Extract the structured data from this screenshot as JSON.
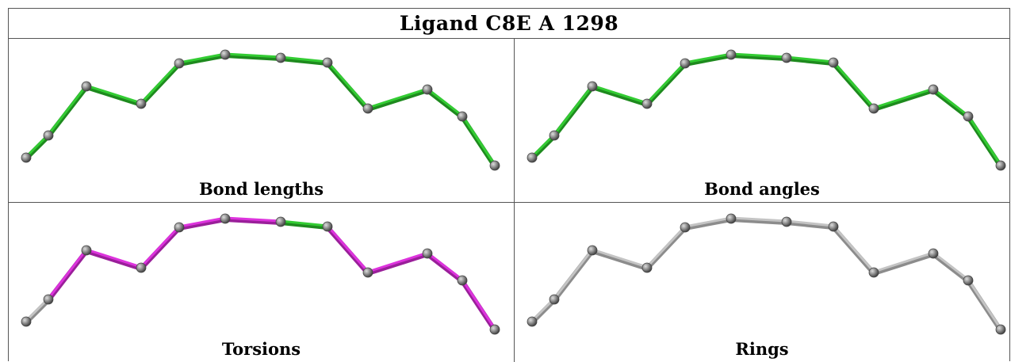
{
  "title": "Ligand C8E A 1298",
  "colors": {
    "ok_bond": "#33cc33",
    "ok_bond_dark": "#1e8a1e",
    "outlier_bond": "#dd33dd",
    "outlier_bond_dark": "#9a1f9a",
    "neutral_bond": "#c4c4c4",
    "neutral_bond_dark": "#8c8c8c",
    "atom": "#8a8a8a",
    "atom_dark": "#444444",
    "atom_highlight": "#dddddd"
  },
  "panels": [
    {
      "id": "bond-lengths",
      "label": "Bond lengths",
      "bond_states": [
        "ok",
        "ok",
        "ok",
        "ok",
        "ok",
        "ok",
        "ok",
        "ok",
        "ok",
        "ok",
        "ok",
        "ok"
      ]
    },
    {
      "id": "bond-angles",
      "label": "Bond angles",
      "bond_states": [
        "ok",
        "ok",
        "ok",
        "ok",
        "ok",
        "ok",
        "ok",
        "ok",
        "ok",
        "ok",
        "ok",
        "ok"
      ]
    },
    {
      "id": "torsions",
      "label": "Torsions",
      "bond_states": [
        "neutral",
        "outlier",
        "outlier",
        "outlier",
        "outlier",
        "outlier",
        "ok",
        "outlier",
        "outlier",
        "outlier",
        "outlier",
        "neutral"
      ]
    },
    {
      "id": "rings",
      "label": "Rings",
      "bond_states": [
        "neutral",
        "neutral",
        "neutral",
        "neutral",
        "neutral",
        "neutral",
        "neutral",
        "neutral",
        "neutral",
        "neutral",
        "neutral",
        "neutral"
      ]
    }
  ]
}
